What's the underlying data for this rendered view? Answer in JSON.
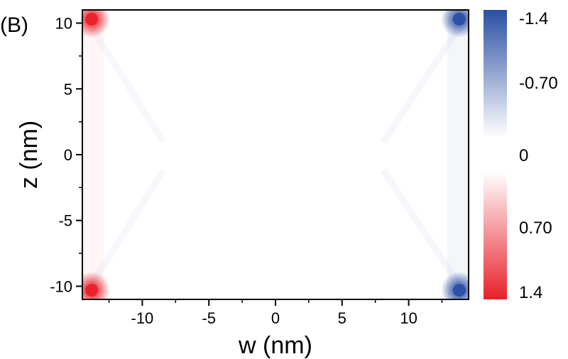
{
  "panel_label": "(B)",
  "chart_data": {
    "type": "heatmap",
    "title": "",
    "xlabel": "w (nm)",
    "ylabel": "z (nm)",
    "xlim": [
      -14.5,
      14.5
    ],
    "ylim": [
      -11,
      11
    ],
    "x_ticks": [
      -10,
      -5,
      0,
      5,
      10
    ],
    "x_tick_labels": [
      "-10",
      "-5",
      "0",
      "5",
      "10"
    ],
    "y_ticks": [
      -10,
      -5,
      0,
      5,
      10
    ],
    "y_tick_labels": [
      "-10",
      "-5",
      "0",
      "5",
      "10"
    ],
    "grid": false,
    "colorbar": {
      "min": -1.4,
      "max": 1.4,
      "ticks": [
        -1.4,
        -0.7,
        0,
        0.7,
        1.4
      ],
      "tick_labels": [
        "-1.4",
        "-0.70",
        "0",
        "0.70",
        "1.4"
      ],
      "negative_color": "#2a4fa3",
      "zero_color": "#ffffff",
      "positive_color": "#e8202a",
      "placement": "right",
      "orientation": "top-negative"
    },
    "hotspots": [
      {
        "w": -13.8,
        "z": 10.3,
        "value": 1.4
      },
      {
        "w": -13.8,
        "z": -10.3,
        "value": 1.4
      },
      {
        "w": 13.8,
        "z": 10.3,
        "value": -1.4
      },
      {
        "w": 13.8,
        "z": -10.3,
        "value": -1.4
      }
    ]
  }
}
